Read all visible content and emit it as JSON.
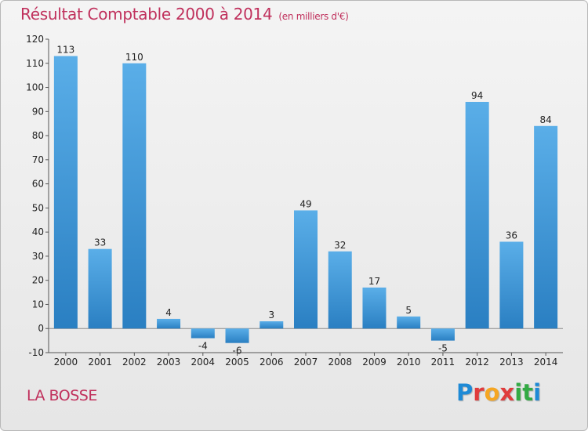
{
  "header": {
    "title": "Résultat Comptable 2000 à 2014",
    "unit": "(en milliers d'€)"
  },
  "footer": {
    "commune": "LA BOSSE",
    "logo_letters": [
      "P",
      "r",
      "o",
      "x",
      "i",
      "t",
      "i"
    ],
    "logo_colors": [
      "#1e8ad6",
      "#e03c3c",
      "#f5a623",
      "#e03c3c",
      "#33aa44",
      "#33aa44",
      "#1e8ad6"
    ]
  },
  "colors": {
    "bar_light": "#5aaee8",
    "bar_dark": "#2a7fc2",
    "title": "#c0305c"
  },
  "chart_data": {
    "type": "bar",
    "title": "Résultat Comptable 2000 à 2014",
    "xlabel": "",
    "ylabel": "",
    "categories": [
      "2000",
      "2001",
      "2002",
      "2003",
      "2004",
      "2005",
      "2006",
      "2007",
      "2008",
      "2009",
      "2010",
      "2011",
      "2012",
      "2013",
      "2014"
    ],
    "values": [
      113,
      33,
      110,
      4,
      -4,
      -6,
      3,
      49,
      32,
      17,
      5,
      -5,
      94,
      36,
      84
    ],
    "data_labels": [
      "113",
      "33",
      "110",
      "4",
      "-4",
      "-6",
      "3",
      "49",
      "32",
      "17",
      "5",
      "-5",
      "94",
      "36",
      "84"
    ],
    "ylim": [
      -10,
      120
    ],
    "yticks": [
      -10,
      0,
      10,
      20,
      30,
      40,
      50,
      60,
      70,
      80,
      90,
      100,
      110,
      120
    ],
    "grid": false,
    "legend": "none"
  }
}
